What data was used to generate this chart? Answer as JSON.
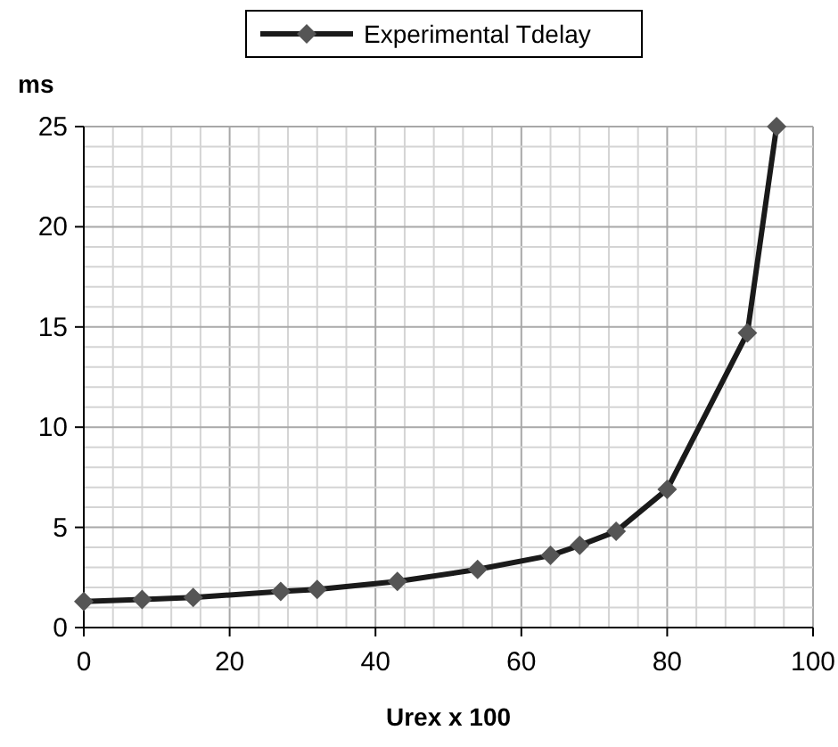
{
  "chart_data": {
    "type": "line",
    "xlabel": "Urex x 100",
    "ylabel": "ms",
    "x": [
      0,
      8,
      15,
      27,
      32,
      43,
      54,
      64,
      68,
      73,
      80,
      91,
      95
    ],
    "series": [
      {
        "name": "Experimental Tdelay",
        "color": "#1a1a1a",
        "values": [
          1.3,
          1.4,
          1.5,
          1.8,
          1.9,
          2.3,
          2.9,
          3.6,
          4.1,
          4.8,
          6.9,
          14.7,
          25
        ]
      }
    ],
    "xlim": [
      0,
      100
    ],
    "xticks": [
      0,
      {
        "value": 4,
        "label": null
      },
      {
        "value": 8,
        "label": null
      },
      {
        "value": 12,
        "label": null
      },
      {
        "value": 16,
        "label": null
      },
      20,
      {
        "value": 24,
        "label": null
      },
      {
        "value": 28,
        "label": null
      },
      {
        "value": 32,
        "label": null
      },
      {
        "value": 36,
        "label": null
      },
      40,
      {
        "value": 44,
        "label": null
      },
      {
        "value": 48,
        "label": null
      },
      {
        "value": 52,
        "label": null
      },
      {
        "value": 56,
        "label": null
      },
      60,
      {
        "value": 64,
        "label": null
      },
      {
        "value": 68,
        "label": null
      },
      {
        "value": 72,
        "label": null
      },
      {
        "value": 76,
        "label": null
      },
      80,
      {
        "value": 84,
        "label": null
      },
      {
        "value": 88,
        "label": null
      },
      {
        "value": 92,
        "label": null
      },
      {
        "value": 96,
        "label": null
      },
      100
    ],
    "ylim": [
      0,
      25
    ],
    "yticks": [
      0,
      {
        "value": 1,
        "label": null
      },
      {
        "value": 2,
        "label": null
      },
      {
        "value": 3,
        "label": null
      },
      {
        "value": 4,
        "label": null
      },
      5,
      {
        "value": 6,
        "label": null
      },
      {
        "value": 7,
        "label": null
      },
      {
        "value": 8,
        "label": null
      },
      {
        "value": 9,
        "label": null
      },
      10,
      {
        "value": 11,
        "label": null
      },
      {
        "value": 12,
        "label": null
      },
      {
        "value": 13,
        "label": null
      },
      {
        "value": 14,
        "label": null
      },
      15,
      {
        "value": 16,
        "label": null
      },
      {
        "value": 17,
        "label": null
      },
      {
        "value": 18,
        "label": null
      },
      {
        "value": 19,
        "label": null
      },
      20,
      {
        "value": 21,
        "label": null
      },
      {
        "value": 22,
        "label": null
      },
      {
        "value": 23,
        "label": null
      },
      {
        "value": 24,
        "label": null
      },
      25
    ],
    "grid": true,
    "legend": "top",
    "marker": "diamond",
    "line_style": "solid"
  }
}
